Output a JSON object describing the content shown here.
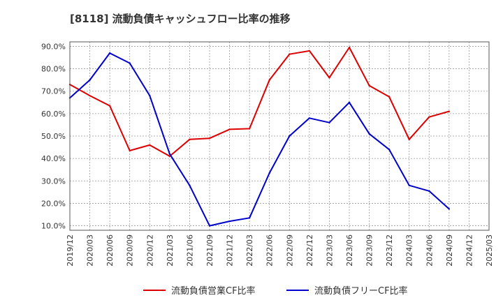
{
  "chart_data": {
    "type": "line",
    "title": "[8118]  流動負債キャッシュフロー比率の推移",
    "xlabel": "",
    "ylabel": "",
    "ylim": [
      8.0,
      92.0
    ],
    "y_ticks": [
      "10.0%",
      "20.0%",
      "30.0%",
      "40.0%",
      "50.0%",
      "60.0%",
      "70.0%",
      "80.0%",
      "90.0%"
    ],
    "y_tick_values": [
      10,
      20,
      30,
      40,
      50,
      60,
      70,
      80,
      90
    ],
    "categories": [
      "2019/12",
      "2020/03",
      "2020/06",
      "2020/09",
      "2020/12",
      "2021/03",
      "2021/06",
      "2021/09",
      "2021/12",
      "2022/03",
      "2022/06",
      "2022/09",
      "2022/12",
      "2023/03",
      "2023/06",
      "2023/09",
      "2023/12",
      "2024/03",
      "2024/06",
      "2024/09",
      "2024/12",
      "2025/03"
    ],
    "grid": true,
    "legend_position": "bottom",
    "series": [
      {
        "name": "流動負債営業CF比率",
        "color": "#dd0000",
        "values": [
          73.0,
          68.0,
          63.5,
          43.5,
          46.0,
          41.0,
          48.5,
          49.0,
          53.0,
          53.3,
          75.0,
          86.5,
          88.0,
          76.0,
          89.5,
          72.5,
          67.5,
          48.5,
          58.5,
          61.0,
          null,
          null
        ]
      },
      {
        "name": "流動負債フリーCF比率",
        "color": "#0000cc",
        "values": [
          67.0,
          75.0,
          87.0,
          82.5,
          68.0,
          42.0,
          28.0,
          10.0,
          12.0,
          13.5,
          33.5,
          50.0,
          58.0,
          56.0,
          65.0,
          51.0,
          44.0,
          28.0,
          25.5,
          17.5,
          null,
          null
        ]
      }
    ]
  }
}
